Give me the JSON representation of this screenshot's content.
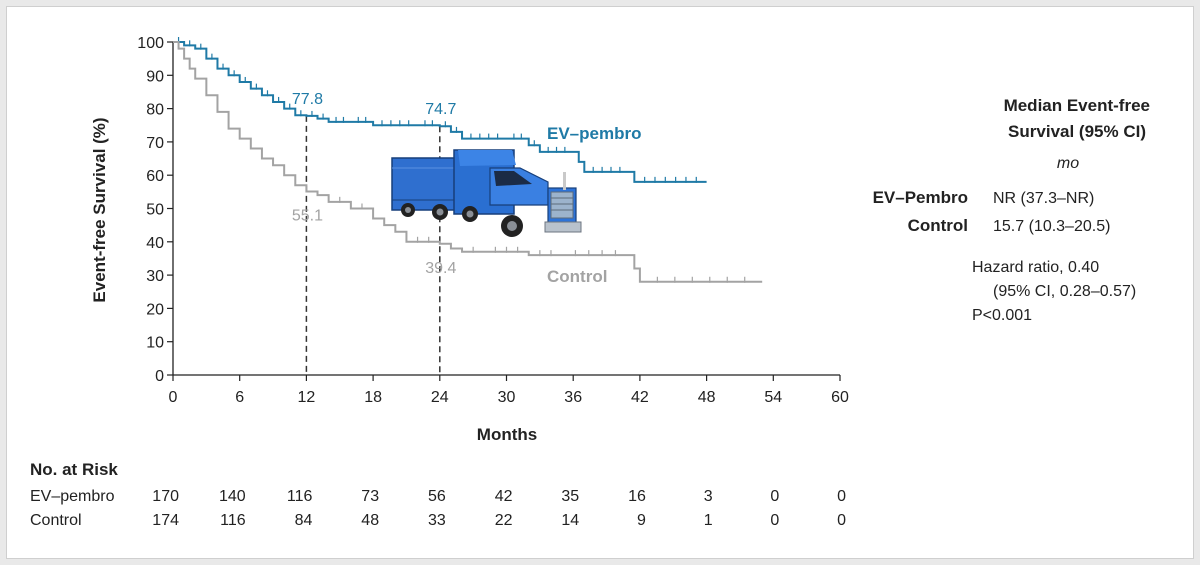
{
  "colors": {
    "ev": "#1f7aa6",
    "control": "#a3a3a3",
    "axis": "#222222"
  },
  "chart_data": {
    "type": "line",
    "ylabel": "Event-free Survival (%)",
    "xlabel": "Months",
    "xlim": [
      0,
      60
    ],
    "ylim": [
      0,
      100
    ],
    "x_ticks": [
      0,
      6,
      12,
      18,
      24,
      30,
      36,
      42,
      48,
      54,
      60
    ],
    "y_ticks": [
      0,
      10,
      20,
      30,
      40,
      50,
      60,
      70,
      80,
      90,
      100
    ],
    "series": [
      {
        "name": "EV–pembro",
        "color": "#1f7aa6",
        "points": [
          [
            0,
            100
          ],
          [
            1,
            99
          ],
          [
            2,
            98
          ],
          [
            3,
            95
          ],
          [
            4,
            92
          ],
          [
            5,
            90
          ],
          [
            6,
            88
          ],
          [
            7,
            86
          ],
          [
            8,
            84
          ],
          [
            9,
            82
          ],
          [
            10,
            80
          ],
          [
            11,
            78
          ],
          [
            12,
            77.8
          ],
          [
            13,
            77
          ],
          [
            14,
            76
          ],
          [
            16,
            76
          ],
          [
            18,
            75
          ],
          [
            22,
            75
          ],
          [
            24,
            74.7
          ],
          [
            25,
            73
          ],
          [
            26,
            71
          ],
          [
            30,
            71
          ],
          [
            32,
            69
          ],
          [
            33,
            67
          ],
          [
            36,
            67
          ],
          [
            36.5,
            64
          ],
          [
            37,
            61
          ],
          [
            41,
            61
          ],
          [
            41.5,
            58
          ],
          [
            48,
            58
          ]
        ]
      },
      {
        "name": "Control",
        "color": "#a3a3a3",
        "points": [
          [
            0,
            100
          ],
          [
            0.5,
            98
          ],
          [
            1,
            95
          ],
          [
            1.5,
            92
          ],
          [
            2,
            89
          ],
          [
            3,
            84
          ],
          [
            4,
            79
          ],
          [
            5,
            74
          ],
          [
            6,
            71
          ],
          [
            7,
            68
          ],
          [
            8,
            65
          ],
          [
            9,
            63
          ],
          [
            10,
            60
          ],
          [
            11,
            57
          ],
          [
            12,
            55.1
          ],
          [
            13,
            54
          ],
          [
            14,
            52
          ],
          [
            16,
            50
          ],
          [
            18,
            47
          ],
          [
            19,
            45
          ],
          [
            20,
            43
          ],
          [
            21,
            40
          ],
          [
            24,
            39.4
          ],
          [
            25,
            38
          ],
          [
            26,
            37
          ],
          [
            28,
            37
          ],
          [
            32,
            36
          ],
          [
            35,
            36
          ],
          [
            41,
            36
          ],
          [
            41.5,
            32
          ],
          [
            42,
            28
          ],
          [
            53,
            28
          ]
        ]
      }
    ],
    "annotations": [
      {
        "text": "77.8",
        "x": 12,
        "y": 77.8,
        "series": 0
      },
      {
        "text": "74.7",
        "x": 24,
        "y": 74.7,
        "series": 0
      },
      {
        "text": "55.1",
        "x": 12,
        "y": 55.1,
        "series": 1
      },
      {
        "text": "39.4",
        "x": 24,
        "y": 39.4,
        "series": 1
      }
    ],
    "series_labels": {
      "ev": "EV–pembro",
      "control": "Control"
    }
  },
  "side_panel": {
    "title_line1": "Median Event-free",
    "title_line2": "Survival (95% CI)",
    "unit": "mo",
    "rows": [
      {
        "label": "EV–Pembro",
        "value": "NR (37.3–NR)"
      },
      {
        "label": "Control",
        "value": "15.7 (10.3–20.5)"
      }
    ],
    "hr_line1": "Hazard ratio, 0.40",
    "hr_line2": "(95% CI, 0.28–0.57)",
    "p_value": "P<0.001"
  },
  "risk_table": {
    "title": "No. at Risk",
    "rows": [
      {
        "label": "EV–pembro",
        "values": [
          "170",
          "140",
          "116",
          "73",
          "56",
          "42",
          "35",
          "16",
          "3",
          "0",
          "0"
        ]
      },
      {
        "label": "Control",
        "values": [
          "174",
          "116",
          "84",
          "48",
          "33",
          "22",
          "14",
          "9",
          "1",
          "0",
          "0"
        ]
      }
    ]
  },
  "overlay_image": {
    "name": "truck-image",
    "color": "#2a6fd1"
  }
}
